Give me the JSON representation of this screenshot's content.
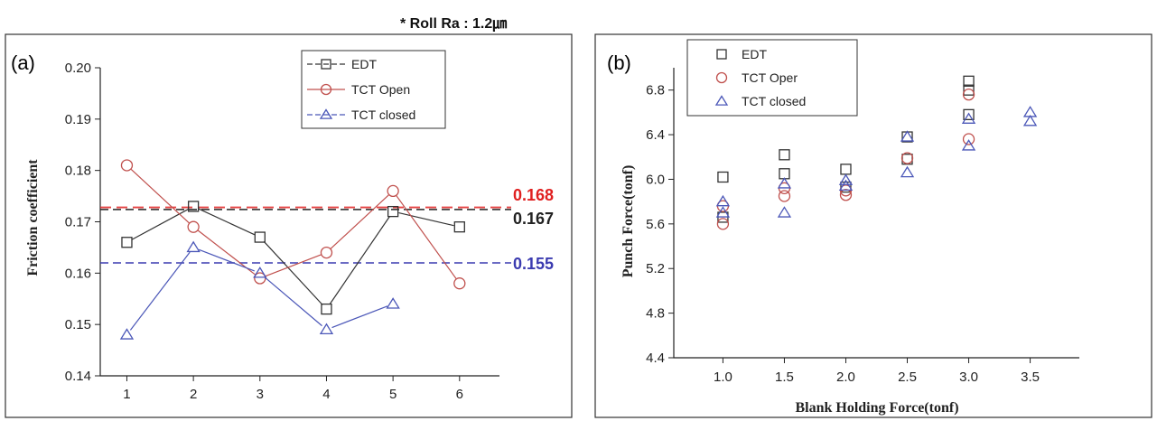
{
  "note": "* Roll Ra : 1.2㎛",
  "colors": {
    "edt": "#333333",
    "tct_open": "#c0504d",
    "tct_closed": "#4b57b8",
    "ref_red": "#e02020",
    "ref_black": "#222222",
    "ref_blue": "#3b3bb0"
  },
  "chart_data": [
    {
      "type": "line",
      "panel_label": "(a)",
      "xlabel": "",
      "ylabel": "Friction coefficient",
      "x": [
        1,
        2,
        3,
        4,
        5,
        6
      ],
      "xlim": [
        0.6,
        6.6
      ],
      "ylim": [
        0.14,
        0.2
      ],
      "yticks": [
        "0.14",
        "0.15",
        "0.16",
        "0.17",
        "0.18",
        "0.19",
        "0.20"
      ],
      "xticks": [
        "1",
        "2",
        "3",
        "4",
        "5",
        "6"
      ],
      "legend_position": "top-right",
      "series": [
        {
          "name": "EDT",
          "marker": "square",
          "x": [
            1,
            2,
            3,
            4,
            5,
            6
          ],
          "values": [
            0.166,
            0.173,
            0.167,
            0.153,
            0.172,
            0.169
          ]
        },
        {
          "name": "TCT Open",
          "marker": "circle",
          "x": [
            1,
            2,
            3,
            4,
            5,
            6
          ],
          "values": [
            0.181,
            0.169,
            0.159,
            0.164,
            0.176,
            0.158
          ]
        },
        {
          "name": "TCT closed",
          "marker": "triangle",
          "x": [
            1,
            2,
            3,
            4,
            5
          ],
          "values": [
            0.148,
            0.165,
            0.16,
            0.149,
            0.154
          ]
        }
      ],
      "reference_lines": [
        {
          "label": "0.168",
          "value": 0.1728,
          "color_key": "ref_red",
          "dash": "long"
        },
        {
          "label": "0.167",
          "value": 0.1724,
          "color_key": "ref_black",
          "dash": "short"
        },
        {
          "label": "0.155",
          "value": 0.162,
          "color_key": "ref_blue",
          "dash": "short"
        }
      ]
    },
    {
      "type": "scatter",
      "panel_label": "(b)",
      "xlabel": "Blank Holding Force(tonf)",
      "ylabel": "Punch Force(tonf)",
      "xlim": [
        0.6,
        3.9
      ],
      "ylim": [
        4.4,
        7.0
      ],
      "xticks": [
        "1.0",
        "1.5",
        "2.0",
        "2.5",
        "3.0",
        "3.5"
      ],
      "yticks": [
        "4.4",
        "4.8",
        "5.2",
        "5.6",
        "6.0",
        "6.4",
        "6.8"
      ],
      "legend_position": "top-left",
      "series": [
        {
          "name": "EDT",
          "marker": "square",
          "points": [
            [
              1.0,
              6.02
            ],
            [
              1.0,
              5.66
            ],
            [
              1.5,
              6.22
            ],
            [
              1.5,
              6.05
            ],
            [
              2.0,
              6.09
            ],
            [
              2.0,
              5.93
            ],
            [
              2.5,
              6.38
            ],
            [
              2.5,
              6.18
            ],
            [
              3.0,
              6.88
            ],
            [
              3.0,
              6.8
            ],
            [
              3.0,
              6.58
            ]
          ]
        },
        {
          "name": "TCT Oper",
          "marker": "circle",
          "points": [
            [
              1.0,
              5.76
            ],
            [
              1.0,
              5.6
            ],
            [
              1.5,
              5.92
            ],
            [
              1.5,
              5.85
            ],
            [
              2.0,
              5.9
            ],
            [
              2.0,
              5.86
            ],
            [
              2.5,
              6.19
            ],
            [
              3.0,
              6.76
            ],
            [
              3.0,
              6.36
            ]
          ]
        },
        {
          "name": "TCT closed",
          "marker": "triangle",
          "points": [
            [
              1.0,
              5.8
            ],
            [
              1.0,
              5.7
            ],
            [
              1.5,
              5.96
            ],
            [
              1.5,
              5.7
            ],
            [
              2.0,
              5.99
            ],
            [
              2.0,
              5.94
            ],
            [
              2.5,
              6.38
            ],
            [
              2.5,
              6.06
            ],
            [
              3.0,
              6.54
            ],
            [
              3.0,
              6.3
            ],
            [
              3.5,
              6.6
            ],
            [
              3.5,
              6.52
            ]
          ]
        }
      ]
    }
  ]
}
